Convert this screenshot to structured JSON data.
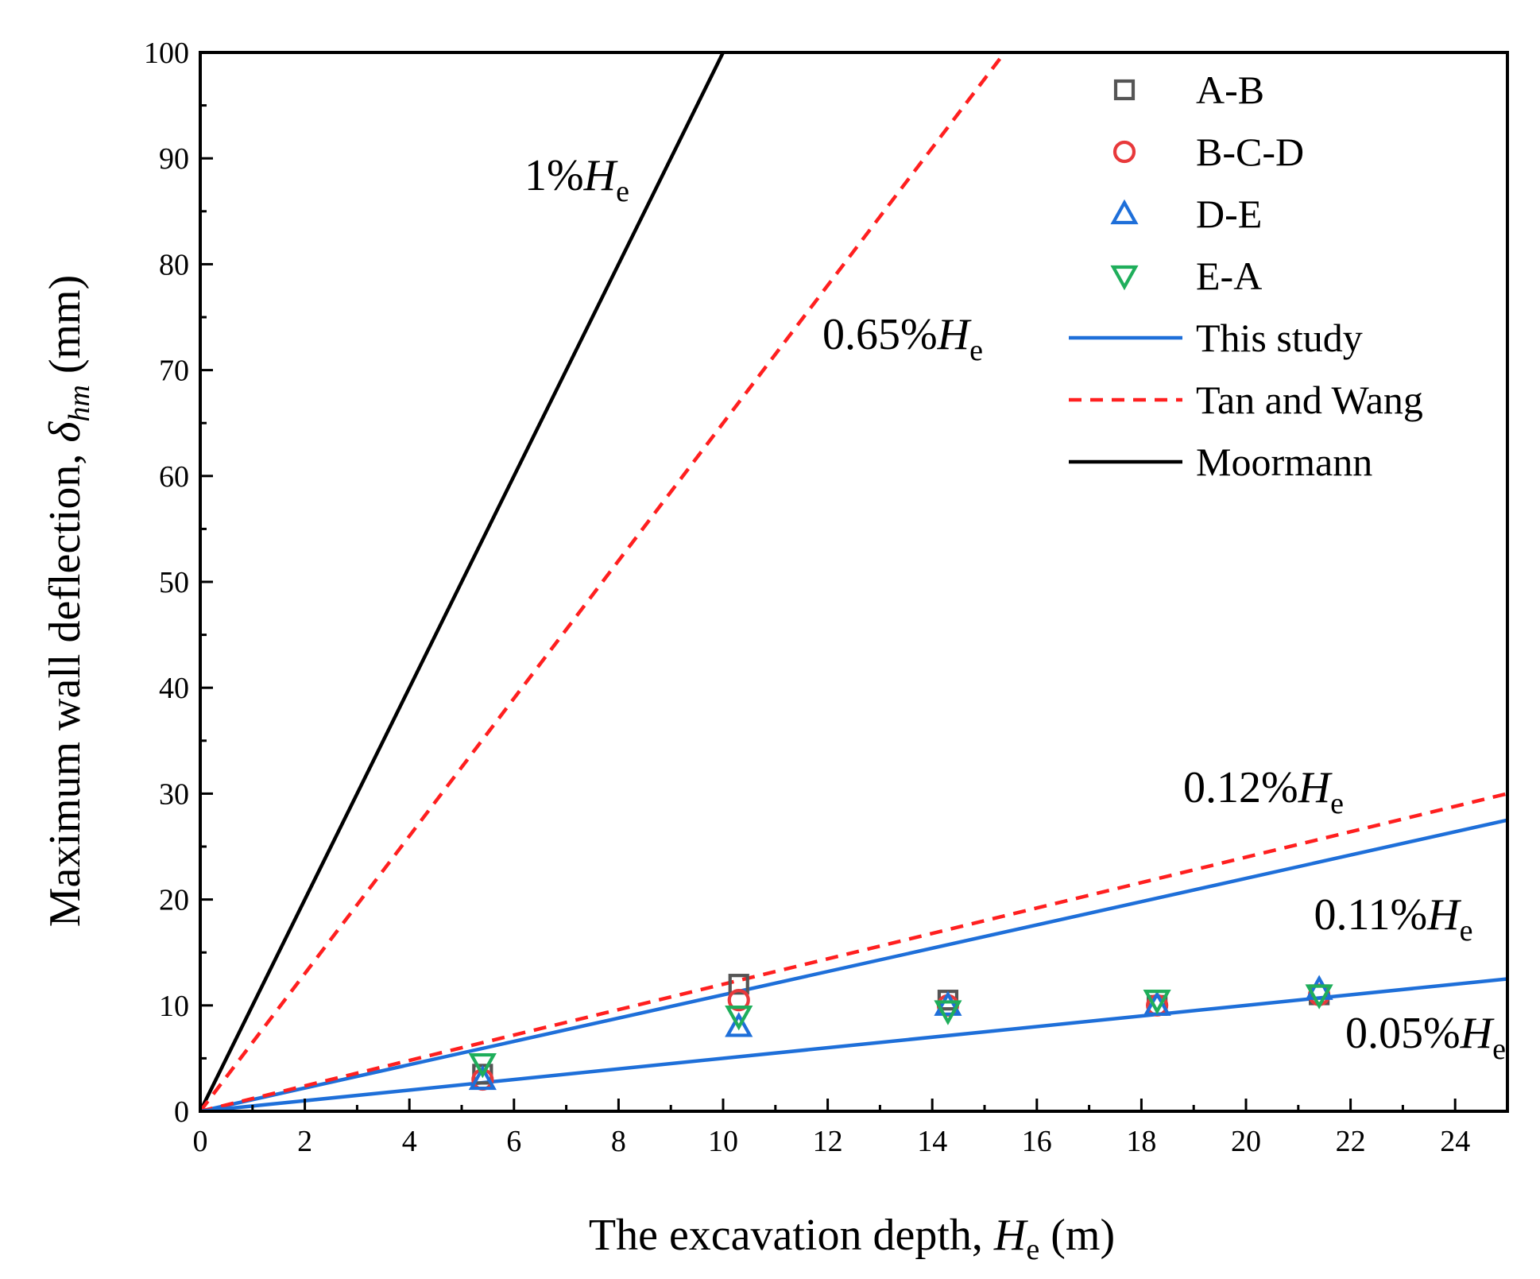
{
  "chart_data": {
    "type": "scatter",
    "xlabel": "The excavation depth, ",
    "xlabel_var": "H",
    "xlabel_sub": "e",
    "xlabel_unit": " (m)",
    "ylabel": "Maximum wall deflection, ",
    "ylabel_var": "δ",
    "ylabel_sub": "hm",
    "ylabel_unit": " (mm)",
    "xlim": [
      0,
      25
    ],
    "ylim": [
      0,
      100
    ],
    "xticks": [
      0,
      2,
      4,
      6,
      8,
      10,
      12,
      14,
      16,
      18,
      20,
      22,
      24
    ],
    "yticks": [
      0,
      10,
      20,
      30,
      40,
      50,
      60,
      70,
      80,
      90,
      100
    ],
    "grid": false,
    "legend_position": "top-right",
    "scatter_series": [
      {
        "name": "A-B",
        "marker": "square",
        "color": "#555555",
        "x": [
          5.4,
          10.3,
          14.3,
          18.3,
          21.4
        ],
        "y": [
          3.5,
          12.0,
          10.5,
          10.0,
          11.0
        ]
      },
      {
        "name": "B-C-D",
        "marker": "circle",
        "color": "#e8393b",
        "x": [
          5.4,
          10.3,
          14.3,
          18.3,
          21.4
        ],
        "y": [
          3.0,
          10.5,
          10.0,
          10.0,
          11.0
        ]
      },
      {
        "name": "D-E",
        "marker": "triangle-up",
        "color": "#1e6fd9",
        "x": [
          5.4,
          10.3,
          14.3,
          18.3,
          21.4
        ],
        "y": [
          3.0,
          8.0,
          10.0,
          10.0,
          11.5
        ]
      },
      {
        "name": "E-A",
        "marker": "triangle-down",
        "color": "#1fae5b",
        "x": [
          5.4,
          10.3,
          14.3,
          18.3,
          21.4
        ],
        "y": [
          4.5,
          9.0,
          9.5,
          10.5,
          11.0
        ]
      }
    ],
    "line_series": [
      {
        "name": "This study",
        "style": "solid",
        "color": "#1e6fd9",
        "slope": 0.0011,
        "show_in_legend": true
      },
      {
        "name": "Tan and Wang",
        "style": "dashed",
        "color": "#ff1f1f",
        "slope": 0.0012,
        "show_in_legend": true
      },
      {
        "name": "Moormann",
        "style": "solid",
        "color": "#000000",
        "slope": 0.01,
        "show_in_legend": true
      },
      {
        "name": "Tan and Wang upper",
        "style": "dashed",
        "color": "#ff1f1f",
        "slope": 0.0065,
        "show_in_legend": false
      },
      {
        "name": "This study lower",
        "style": "solid",
        "color": "#1e6fd9",
        "slope": 0.0005,
        "show_in_legend": false
      }
    ],
    "annotations": [
      {
        "pct": "1%",
        "var": "H",
        "sub": "e",
        "x": 6.2,
        "y": 87
      },
      {
        "pct": "0.65%",
        "var": "H",
        "sub": "e",
        "x": 11.9,
        "y": 72
      },
      {
        "pct": "0.12%",
        "var": "H",
        "sub": "e",
        "x": 18.8,
        "y": 29.2
      },
      {
        "pct": "0.11%",
        "var": "H",
        "sub": "e",
        "x": 21.3,
        "y": 17.2
      },
      {
        "pct": "0.05%",
        "var": "H",
        "sub": "e",
        "x": 21.9,
        "y": 6.0
      }
    ]
  }
}
